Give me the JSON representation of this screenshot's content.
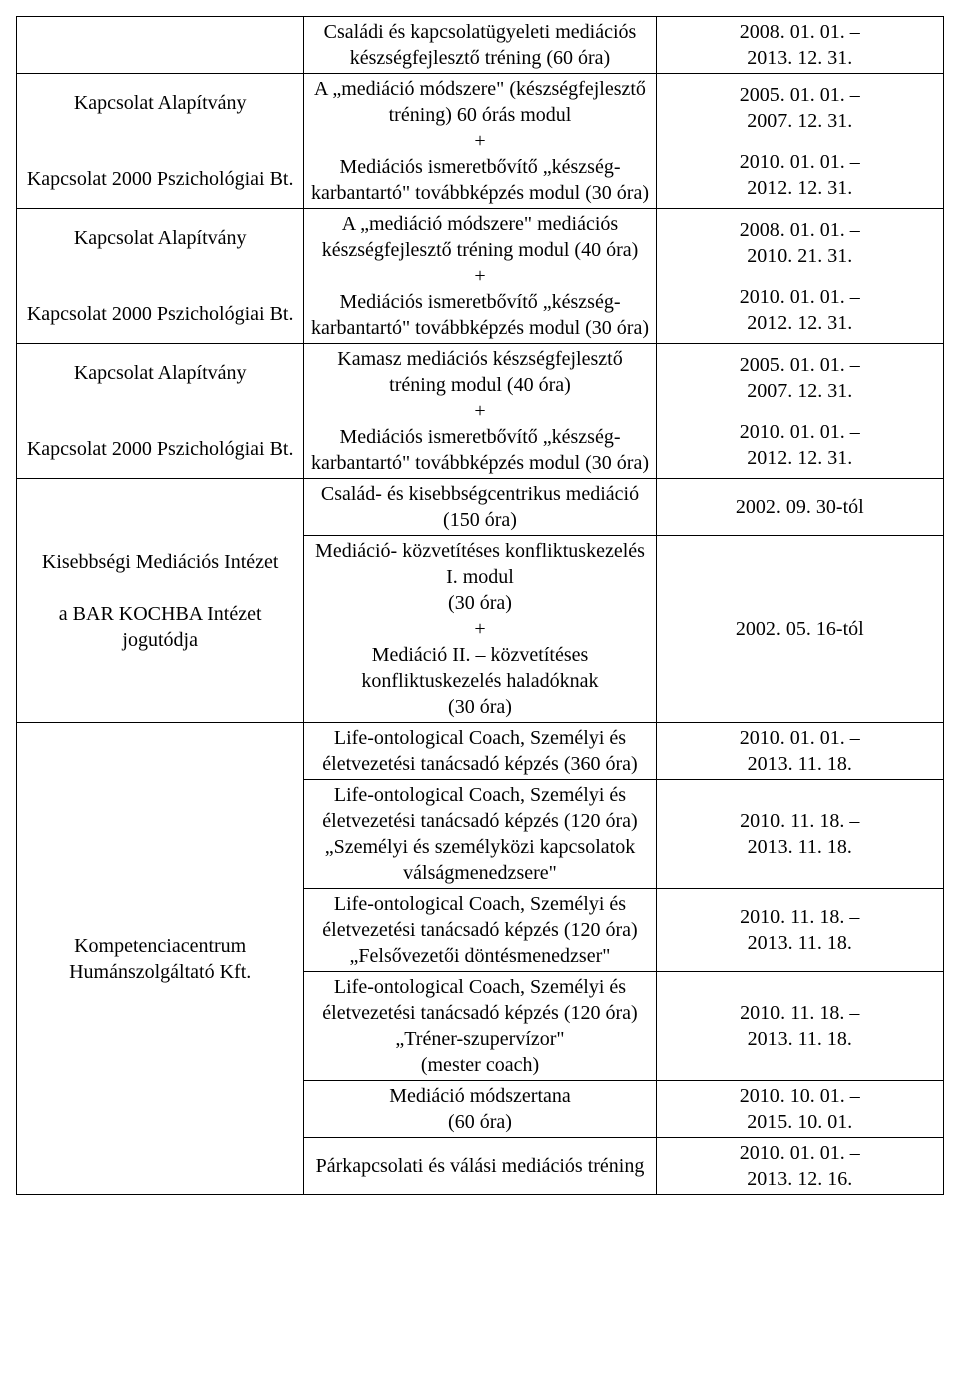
{
  "cells": {
    "r0c1": "Családi és kapcsolatügyeleti mediációs készségfejlesztő tréning (60 óra)",
    "r0c2a": "2008. 01. 01. –",
    "r0c2b": "2013. 12. 31.",
    "r1c0": "Kapcsolat Alapítvány",
    "r1c1": "A „mediáció módszere\" (készségfejlesztő tréning) 60 órás modul",
    "r1c2a": "2005. 01. 01. –",
    "r1c2b": "2007. 12. 31.",
    "r2c0": "Kapcsolat 2000 Pszichológiai Bt.",
    "r2c1": "+\nMediációs ismeretbővítő „készség-karbantartó\" továbbképzés modul (30 óra)",
    "r2c2a": "2010. 01. 01. –",
    "r2c2b": "2012. 12. 31.",
    "r3c0": "Kapcsolat Alapítvány",
    "r3c1": "A „mediáció módszere\" mediációs készségfejlesztő tréning modul (40 óra)",
    "r3c2a": "2008. 01. 01. –",
    "r3c2b": "2010. 21. 31.",
    "r4c0": "Kapcsolat 2000 Pszichológiai Bt.",
    "r4c1": "+\nMediációs ismeretbővítő „készség-karbantartó\" továbbképzés modul (30 óra)",
    "r4c2a": "2010. 01. 01. –",
    "r4c2b": "2012. 12. 31.",
    "r5c0": "Kapcsolat Alapítvány",
    "r5c1": "Kamasz mediációs készségfejlesztő tréning modul (40 óra)",
    "r5c2a": "2005. 01. 01. –",
    "r5c2b": "2007. 12. 31.",
    "r6c0": "Kapcsolat 2000 Pszichológiai Bt.",
    "r6c1": "+\nMediációs ismeretbővítő „készség-karbantartó\" továbbképzés modul (30 óra)",
    "r6c2a": "2010. 01. 01. –",
    "r6c2b": "2012. 12. 31.",
    "r7c0": "Kisebbségi Mediációs Intézet\n\na BAR KOCHBA Intézet jogutódja",
    "r7c1": "Család- és kisebbségcentrikus mediáció (150 óra)",
    "r7c2": "2002. 09. 30-tól",
    "r8c1": "Mediáció- közvetítéses konfliktuskezelés I. modul\n(30 óra)\n+\nMediáció II. – közvetítéses konfliktuskezelés haladóknak\n(30 óra)",
    "r8c2": "2002. 05. 16-tól",
    "r9c0": "Kompetenciacentrum Humánszolgáltató Kft.",
    "r9c1": "Life-ontological Coach, Személyi és életvezetési tanácsadó képzés (360 óra)",
    "r9c2a": "2010. 01. 01. –",
    "r9c2b": "2013. 11. 18.",
    "r10c1": "Life-ontological Coach, Személyi és életvezetési tanácsadó képzés (120 óra)\n„Személyi és személyközi kapcsolatok válságmenedzsere\"",
    "r10c2a": "2010. 11. 18. –",
    "r10c2b": "2013. 11. 18.",
    "r11c1": "Life-ontological Coach, Személyi és életvezetési tanácsadó képzés (120 óra)\n„Felsővezetői döntésmenedzser\"",
    "r11c2a": "2010. 11. 18. –",
    "r11c2b": "2013. 11. 18.",
    "r12c1": "Life-ontological Coach, Személyi és életvezetési tanácsadó képzés (120 óra)\n„Tréner-szupervízor\"\n(mester coach)",
    "r12c2a": "2010. 11. 18. –",
    "r12c2b": "2013. 11. 18.",
    "r13c1": "Mediáció módszertana\n(60 óra)",
    "r13c2a": "2010. 10. 01. –",
    "r13c2b": "2015. 10. 01.",
    "r14c1": "Párkapcsolati és válási mediációs tréning",
    "r14c2a": "2010. 01. 01. –",
    "r14c2b": "2013. 12. 16."
  }
}
